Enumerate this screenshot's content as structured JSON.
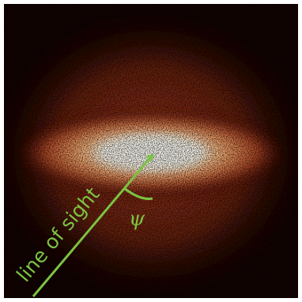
{
  "annotations": {
    "line_of_sight": "line of sight",
    "angle": "ψ"
  }
}
